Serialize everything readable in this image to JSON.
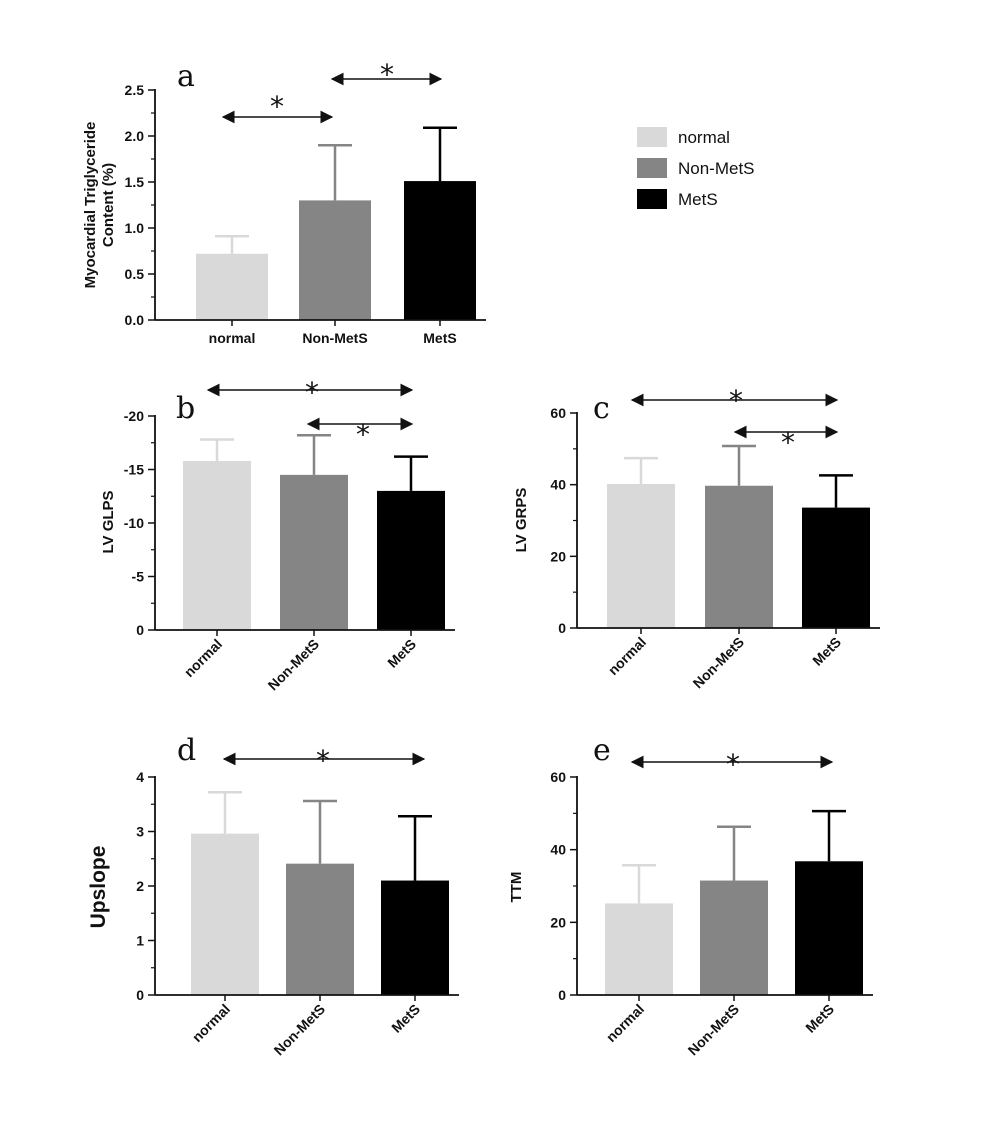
{
  "legend": [
    {
      "label": "normal",
      "color": "#d9d9d9"
    },
    {
      "label": "Non-MetS",
      "color": "#858585"
    },
    {
      "label": "MetS",
      "color": "#000000"
    }
  ],
  "chart_data": [
    {
      "panel": "a",
      "type": "bar",
      "categories": [
        "normal",
        "Non-MetS",
        "MetS"
      ],
      "values": [
        0.72,
        1.3,
        1.51
      ],
      "error_upper": [
        0.19,
        0.6,
        0.58
      ],
      "ylabel": "Myocardial Triglyceride Content (%)",
      "ylabel_lines": [
        "Myocardial Triglyceride",
        "Content (%)"
      ],
      "ylim": [
        0,
        2.5
      ],
      "yticks": [
        "0.0",
        "0.5",
        "1.0",
        "1.5",
        "2.0",
        "2.5"
      ],
      "tick_values": [
        0,
        0.5,
        1.0,
        1.5,
        2.0,
        2.5
      ],
      "label_rotation": 0,
      "inverted": false,
      "significance": [
        {
          "from": "normal",
          "to": "Non-MetS",
          "label": "*"
        },
        {
          "from": "Non-MetS",
          "to": "MetS",
          "label": "*"
        }
      ]
    },
    {
      "panel": "b",
      "type": "bar",
      "categories": [
        "normal",
        "Non-MetS",
        "MetS"
      ],
      "values": [
        -15.8,
        -14.5,
        -13.0
      ],
      "error_upper": [
        2.0,
        3.7,
        3.2
      ],
      "ylabel": "LV  GLPS",
      "ylim": [
        0,
        -20
      ],
      "yticks": [
        "0",
        "-5",
        "-10",
        "-15",
        "-20"
      ],
      "tick_values": [
        0,
        -5,
        -10,
        -15,
        -20
      ],
      "label_rotation": -45,
      "inverted": true,
      "significance": [
        {
          "from": "normal",
          "to": "MetS",
          "label": "*"
        },
        {
          "from": "Non-MetS",
          "to": "MetS",
          "label": "*"
        }
      ]
    },
    {
      "panel": "c",
      "type": "bar",
      "categories": [
        "normal",
        "Non-MetS",
        "MetS"
      ],
      "values": [
        40.2,
        39.7,
        33.6
      ],
      "error_upper": [
        7.2,
        11.1,
        9.0
      ],
      "ylabel": "LV GRPS",
      "ylim": [
        0,
        60
      ],
      "yticks": [
        "0",
        "20",
        "40",
        "60"
      ],
      "tick_values": [
        0,
        20,
        40,
        60
      ],
      "label_rotation": -45,
      "inverted": false,
      "significance": [
        {
          "from": "normal",
          "to": "MetS",
          "label": "*"
        },
        {
          "from": "Non-MetS",
          "to": "MetS",
          "label": "*"
        }
      ]
    },
    {
      "panel": "d",
      "type": "bar",
      "categories": [
        "normal",
        "Non-MetS",
        "MetS"
      ],
      "values": [
        2.96,
        2.41,
        2.1
      ],
      "error_upper": [
        0.76,
        1.15,
        1.18
      ],
      "ylabel": "Upslope",
      "ylim": [
        0,
        4
      ],
      "yticks": [
        "0",
        "1",
        "2",
        "3",
        "4"
      ],
      "tick_values": [
        0,
        1,
        2,
        3,
        4
      ],
      "label_rotation": -45,
      "inverted": false,
      "significance": [
        {
          "from": "normal",
          "to": "MetS",
          "label": "*"
        }
      ]
    },
    {
      "panel": "e",
      "type": "bar",
      "categories": [
        "normal",
        "Non-MetS",
        "MetS"
      ],
      "values": [
        25.2,
        31.5,
        36.8
      ],
      "error_upper": [
        10.5,
        14.8,
        13.8
      ],
      "ylabel": "TTM",
      "ylim": [
        0,
        60
      ],
      "yticks": [
        "0",
        "20",
        "40",
        "60"
      ],
      "tick_values": [
        0,
        20,
        40,
        60
      ],
      "label_rotation": -45,
      "inverted": false,
      "significance": [
        {
          "from": "normal",
          "to": "MetS",
          "label": "*"
        }
      ]
    }
  ]
}
